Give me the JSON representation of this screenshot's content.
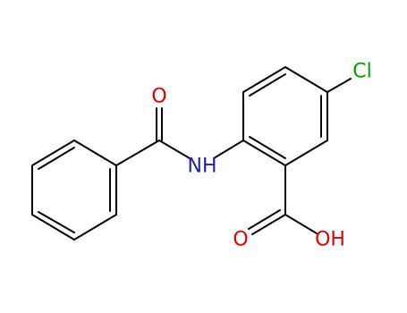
{
  "atoms": [
    {
      "label": "O"
    },
    {
      "label": "NH"
    },
    {
      "label": "Cl"
    },
    {
      "label": "O"
    },
    {
      "label": "OH"
    }
  ]
}
